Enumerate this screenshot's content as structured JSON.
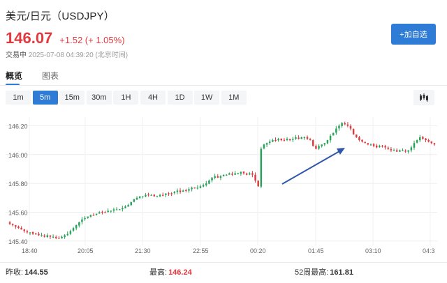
{
  "header": {
    "title": "美元/日元（USDJPY）",
    "price": "146.07",
    "change": "+1.52 (+ 1.05%)",
    "status": "交易中",
    "timestamp": "2025-07-08 04:39:20 (北京时间)",
    "add_watch_label": "+加自选"
  },
  "tabs": [
    {
      "label": "概览",
      "active": true
    },
    {
      "label": "图表",
      "active": false
    }
  ],
  "intervals": [
    {
      "label": "1m",
      "active": false
    },
    {
      "label": "5m",
      "active": true
    },
    {
      "label": "15m",
      "active": false
    },
    {
      "label": "30m",
      "active": false
    },
    {
      "label": "1H",
      "active": false
    },
    {
      "label": "4H",
      "active": false
    },
    {
      "label": "1D",
      "active": false
    },
    {
      "label": "1W",
      "active": false
    },
    {
      "label": "1M",
      "active": false
    }
  ],
  "stats": {
    "prev_close_label": "昨收:",
    "prev_close": "144.55",
    "high_label": "最高:",
    "high": "146.24",
    "w52_high_label": "52周最高:",
    "w52_high": "161.81"
  },
  "colors": {
    "up": "#2aa35a",
    "down": "#e0393e",
    "accent": "#2f7cd6",
    "arrow": "#2f56a8"
  },
  "chart_data": {
    "type": "candlestick",
    "x_tick_labels": [
      "18:40",
      "20:05",
      "21:30",
      "22:55",
      "00:20",
      "01:45",
      "03:10",
      "04:3"
    ],
    "y_tick_labels": [
      "146.20",
      "146.00",
      "145.80",
      "145.60",
      "145.40"
    ],
    "ylim": [
      145.37,
      146.26
    ],
    "grid": true,
    "annotation": "upward arrow",
    "closes": [
      145.52,
      145.51,
      145.5,
      145.49,
      145.48,
      145.47,
      145.46,
      145.46,
      145.45,
      145.45,
      145.44,
      145.44,
      145.43,
      145.44,
      145.43,
      145.43,
      145.42,
      145.42,
      145.43,
      145.44,
      145.45,
      145.47,
      145.49,
      145.51,
      145.53,
      145.55,
      145.56,
      145.57,
      145.58,
      145.58,
      145.59,
      145.6,
      145.6,
      145.6,
      145.61,
      145.61,
      145.62,
      145.62,
      145.62,
      145.63,
      145.64,
      145.65,
      145.67,
      145.69,
      145.7,
      145.71,
      145.71,
      145.72,
      145.72,
      145.72,
      145.71,
      145.71,
      145.72,
      145.72,
      145.73,
      145.73,
      145.73,
      145.74,
      145.75,
      145.74,
      145.75,
      145.75,
      145.76,
      145.77,
      145.77,
      145.77,
      145.78,
      145.79,
      145.8,
      145.82,
      145.84,
      145.85,
      145.84,
      145.85,
      145.86,
      145.86,
      145.87,
      145.86,
      145.87,
      145.87,
      145.88,
      145.87,
      145.86,
      145.87,
      145.86,
      145.82,
      145.78,
      146.04,
      146.07,
      146.08,
      146.09,
      146.1,
      146.1,
      146.11,
      146.1,
      146.1,
      146.11,
      146.1,
      146.11,
      146.12,
      146.11,
      146.12,
      146.12,
      146.11,
      146.1,
      146.06,
      146.04,
      146.06,
      146.07,
      146.08,
      146.1,
      146.13,
      146.15,
      146.18,
      146.2,
      146.22,
      146.21,
      146.2,
      146.18,
      146.14,
      146.12,
      146.1,
      146.09,
      146.08,
      146.07,
      146.07,
      146.06,
      146.05,
      146.06,
      146.06,
      146.05,
      146.04,
      146.03,
      146.03,
      146.02,
      146.03,
      146.03,
      146.02,
      146.03,
      146.05,
      146.08,
      146.1,
      146.12,
      146.11,
      146.1,
      146.09,
      146.08,
      146.07
    ]
  }
}
